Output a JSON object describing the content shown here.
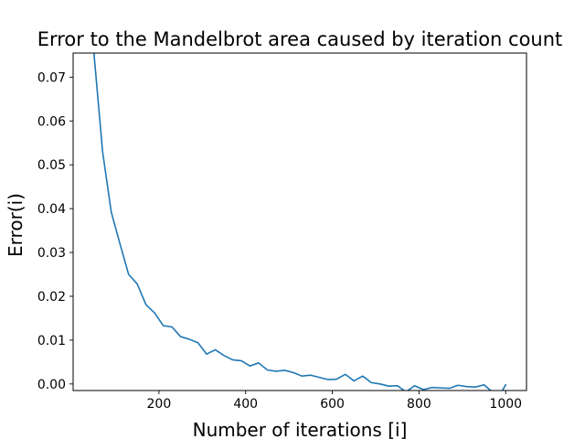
{
  "chart_data": {
    "type": "line",
    "title": "Error to the Mandelbrot area caused by iteration count",
    "xlabel": "Number of iterations [i]",
    "ylabel": "Error(i)",
    "xlim": [
      2,
      1048
    ],
    "ylim": [
      -0.0015,
      0.0755
    ],
    "xticks": [
      200,
      400,
      600,
      800,
      1000
    ],
    "xtick_labels": [
      "200",
      "400",
      "600",
      "800",
      "1000"
    ],
    "yticks": [
      0.0,
      0.01,
      0.02,
      0.03,
      0.04,
      0.05,
      0.06,
      0.07
    ],
    "ytick_labels": [
      "0.00",
      "0.01",
      "0.02",
      "0.03",
      "0.04",
      "0.05",
      "0.06",
      "0.07"
    ],
    "grid": false,
    "series": [
      {
        "color": "#1f77b4",
        "x": [
          50,
          70,
          90,
          110,
          130,
          150,
          170,
          190,
          210,
          230,
          250,
          270,
          290,
          310,
          330,
          350,
          370,
          390,
          410,
          430,
          450,
          470,
          490,
          510,
          530,
          550,
          570,
          590,
          610,
          630,
          650,
          670,
          690,
          710,
          730,
          750,
          770,
          790,
          810,
          830,
          850,
          870,
          890,
          910,
          930,
          950,
          970,
          990,
          1000
        ],
        "y": [
          0.0755,
          0.053,
          0.0392,
          0.032,
          0.025,
          0.0228,
          0.0181,
          0.0162,
          0.0133,
          0.013,
          0.0108,
          0.0102,
          0.0094,
          0.0068,
          0.0078,
          0.0065,
          0.0055,
          0.0053,
          0.0041,
          0.0048,
          0.0032,
          0.0029,
          0.0031,
          0.0026,
          0.0018,
          0.002,
          0.0015,
          0.001,
          0.0011,
          0.0022,
          0.0007,
          0.0018,
          0.0003,
          0.0,
          -0.0005,
          -0.0004,
          -0.0018,
          -0.0004,
          -0.0013,
          -0.0008,
          -0.0009,
          -0.001,
          -0.0003,
          -0.0006,
          -0.0007,
          -0.0002,
          -0.0019,
          -0.0019,
          -0.0002
        ]
      }
    ]
  }
}
